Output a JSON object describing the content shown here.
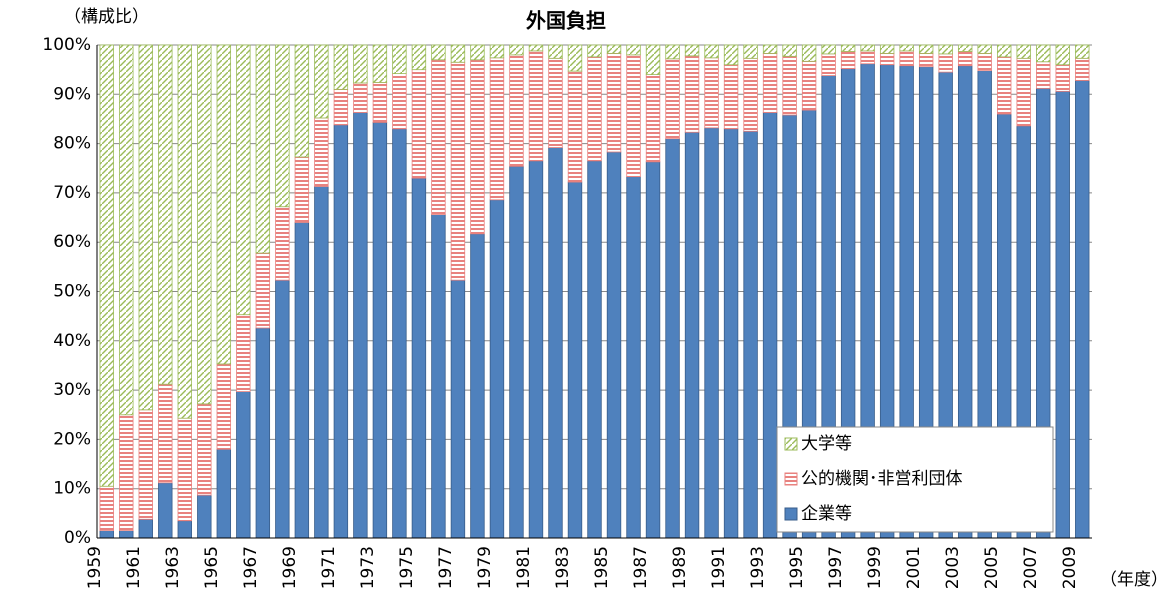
{
  "chart_data": {
    "type": "stacked_bar",
    "title": "外国負担",
    "y_label": "（構成比）",
    "x_label": "（年度）",
    "categories": [
      "1959",
      null,
      "1961",
      null,
      "1963",
      null,
      "1965",
      null,
      "1967",
      null,
      "1969",
      null,
      "1971",
      null,
      "1973",
      null,
      "1975",
      null,
      "1977",
      null,
      "1979",
      null,
      "1981",
      null,
      "1983",
      null,
      "1985",
      null,
      "1987",
      null,
      "1989",
      null,
      "1991",
      null,
      "1993",
      null,
      "1995",
      null,
      "1997",
      null,
      "1999",
      null,
      "2001",
      null,
      "2003",
      null,
      "2005",
      null,
      "2007",
      null,
      "2009"
    ],
    "series": [
      {
        "name": "企業等",
        "color": "#4f81bd",
        "values": [
          1.5,
          1.5,
          3.8,
          11.2,
          3.5,
          8.7,
          18,
          29.7,
          42.6,
          52.3,
          64,
          71.3,
          83.8,
          86.3,
          84.3,
          83,
          73,
          65.6,
          52.3,
          61.7,
          68.6,
          75.4,
          76.5,
          79.2,
          72.2,
          76.5,
          78.3,
          73.3,
          76.3,
          81,
          82.3,
          83.2,
          83,
          82.5,
          86.3,
          85.8,
          86.8,
          93.8,
          95.2,
          96.2,
          96,
          95.8,
          95.6,
          94.5,
          95.8,
          94.8,
          86,
          83.6,
          91.2,
          90.6,
          92.8
        ]
      },
      {
        "name": "公的機関･非営利団体",
        "color": "#e8827f",
        "values": [
          9,
          23.5,
          22.2,
          20,
          20.8,
          18.5,
          17.3,
          15.6,
          15.2,
          14.9,
          13.3,
          13.9,
          7.2,
          6,
          8.1,
          11.2,
          22,
          31.4,
          44.2,
          35.3,
          28.8,
          22.6,
          22.3,
          18.1,
          22.5,
          21.1,
          20,
          24.7,
          17.7,
          16.2,
          15.5,
          14.2,
          13,
          14.8,
          12,
          11.9,
          9.9,
          4.4,
          3.5,
          2.6,
          2.3,
          3,
          2.7,
          3.7,
          2.9,
          3.5,
          11.6,
          13.7,
          5.4,
          5.4,
          4.5
        ]
      },
      {
        "name": "大学等",
        "color": "#9bbb59",
        "values": [
          89.5,
          75,
          74,
          68.8,
          75.7,
          72.8,
          64.7,
          54.7,
          42.2,
          32.8,
          22.7,
          14.8,
          9,
          7.7,
          7.6,
          5.8,
          5,
          3,
          3.5,
          3,
          2.6,
          2,
          1.2,
          2.7,
          5.3,
          2.4,
          1.7,
          2,
          6,
          2.8,
          2.2,
          2.6,
          4,
          2.7,
          1.7,
          2.3,
          3.3,
          1.8,
          1.3,
          1.2,
          1.7,
          1.2,
          1.7,
          1.8,
          1.3,
          1.7,
          2.4,
          2.7,
          3.4,
          4,
          2.7
        ]
      }
    ],
    "ylim": [
      0,
      100
    ],
    "yticks": [
      {
        "value": 0,
        "label": "0%"
      },
      {
        "value": 10,
        "label": "10%"
      },
      {
        "value": 20,
        "label": "20%"
      },
      {
        "value": 30,
        "label": "30%"
      },
      {
        "value": 40,
        "label": "40%"
      },
      {
        "value": 50,
        "label": "50%"
      },
      {
        "value": 60,
        "label": "60%"
      },
      {
        "value": 70,
        "label": "70%"
      },
      {
        "value": 80,
        "label": "80%"
      },
      {
        "value": 90,
        "label": "90%"
      },
      {
        "value": 100,
        "label": "100%"
      }
    ],
    "grid": true,
    "legend": "lower right"
  }
}
